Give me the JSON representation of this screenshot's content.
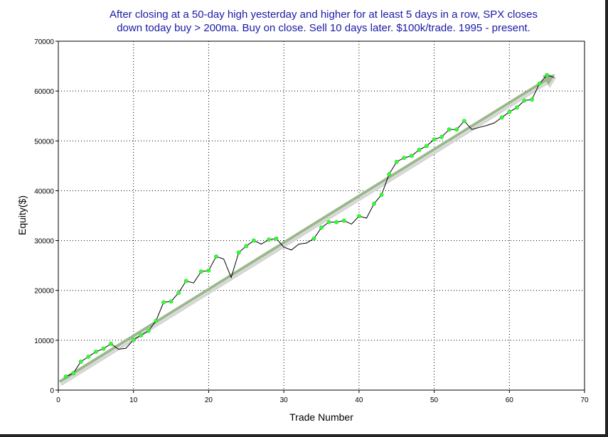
{
  "chart_data": {
    "type": "line",
    "title_lines": [
      "After closing at a 50-day high yesterday and higher for at least 5 days in a row, SPX closes",
      "down today buy > 200ma. Buy on close. Sell 10 days later. $100k/trade. 1995 - present."
    ],
    "xlabel": "Trade Number",
    "ylabel": "Equity($)",
    "xlim": [
      0,
      70
    ],
    "ylim": [
      0,
      70000
    ],
    "x_ticks": [
      0,
      10,
      20,
      30,
      40,
      50,
      60,
      70
    ],
    "y_ticks": [
      0,
      10000,
      20000,
      30000,
      40000,
      50000,
      60000,
      70000
    ],
    "grid": true,
    "series": [
      {
        "type": "equity-line",
        "color": "#000000",
        "points": [
          [
            1,
            2700
          ],
          [
            2,
            3400
          ],
          [
            3,
            5700
          ],
          [
            4,
            6700
          ],
          [
            5,
            7700
          ],
          [
            6,
            8300
          ],
          [
            7,
            9300
          ],
          [
            8,
            8200
          ],
          [
            9,
            8400
          ],
          [
            10,
            10100
          ],
          [
            11,
            11000
          ],
          [
            12,
            11900
          ],
          [
            13,
            13900
          ],
          [
            14,
            17600
          ],
          [
            15,
            17800
          ],
          [
            16,
            19500
          ],
          [
            17,
            21900
          ],
          [
            18,
            21500
          ],
          [
            19,
            23800
          ],
          [
            20,
            24000
          ],
          [
            21,
            26800
          ],
          [
            22,
            26300
          ],
          [
            23,
            22600
          ],
          [
            24,
            27600
          ],
          [
            25,
            28900
          ],
          [
            26,
            30000
          ],
          [
            27,
            29300
          ],
          [
            28,
            30200
          ],
          [
            29,
            30400
          ],
          [
            30,
            28700
          ],
          [
            31,
            28100
          ],
          [
            32,
            29300
          ],
          [
            33,
            29500
          ],
          [
            34,
            30400
          ],
          [
            35,
            32600
          ],
          [
            36,
            33700
          ],
          [
            37,
            33700
          ],
          [
            38,
            34000
          ],
          [
            39,
            33300
          ],
          [
            40,
            34900
          ],
          [
            41,
            34500
          ],
          [
            42,
            37400
          ],
          [
            43,
            39200
          ],
          [
            44,
            43300
          ],
          [
            45,
            45800
          ],
          [
            46,
            46600
          ],
          [
            47,
            47000
          ],
          [
            48,
            48200
          ],
          [
            49,
            49000
          ],
          [
            50,
            50300
          ],
          [
            51,
            50800
          ],
          [
            52,
            52300
          ],
          [
            53,
            52300
          ],
          [
            54,
            54000
          ],
          [
            55,
            52300
          ],
          [
            56,
            52700
          ],
          [
            57,
            53100
          ],
          [
            58,
            53600
          ],
          [
            59,
            54700
          ],
          [
            60,
            55800
          ],
          [
            61,
            56700
          ],
          [
            62,
            58100
          ],
          [
            63,
            58300
          ],
          [
            64,
            61500
          ],
          [
            65,
            63200
          ],
          [
            66,
            62700
          ]
        ]
      },
      {
        "type": "markers",
        "color": "#33ff33",
        "points": [
          [
            1,
            2700
          ],
          [
            2,
            3400
          ],
          [
            3,
            5700
          ],
          [
            4,
            6700
          ],
          [
            5,
            7700
          ],
          [
            6,
            8300
          ],
          [
            7,
            9300
          ],
          [
            10,
            10100
          ],
          [
            11,
            11000
          ],
          [
            12,
            11900
          ],
          [
            13,
            13900
          ],
          [
            14,
            17600
          ],
          [
            15,
            17800
          ],
          [
            16,
            19500
          ],
          [
            17,
            21900
          ],
          [
            19,
            23800
          ],
          [
            20,
            24000
          ],
          [
            21,
            26800
          ],
          [
            24,
            27600
          ],
          [
            25,
            28900
          ],
          [
            26,
            30000
          ],
          [
            28,
            30200
          ],
          [
            29,
            30400
          ],
          [
            34,
            30400
          ],
          [
            35,
            32600
          ],
          [
            36,
            33700
          ],
          [
            37,
            33700
          ],
          [
            38,
            34000
          ],
          [
            40,
            34900
          ],
          [
            42,
            37400
          ],
          [
            43,
            39200
          ],
          [
            44,
            43300
          ],
          [
            45,
            45800
          ],
          [
            46,
            46600
          ],
          [
            47,
            47000
          ],
          [
            48,
            48200
          ],
          [
            49,
            49000
          ],
          [
            50,
            50300
          ],
          [
            51,
            50800
          ],
          [
            52,
            52300
          ],
          [
            53,
            52300
          ],
          [
            54,
            54000
          ],
          [
            59,
            54700
          ],
          [
            60,
            55800
          ],
          [
            61,
            56700
          ],
          [
            62,
            58100
          ],
          [
            63,
            58300
          ],
          [
            64,
            61500
          ],
          [
            65,
            63200
          ]
        ]
      },
      {
        "type": "trend-arrow",
        "color": "#9ab88c",
        "start": [
          0.3,
          1800
        ],
        "end": [
          65.5,
          62800
        ]
      }
    ]
  }
}
